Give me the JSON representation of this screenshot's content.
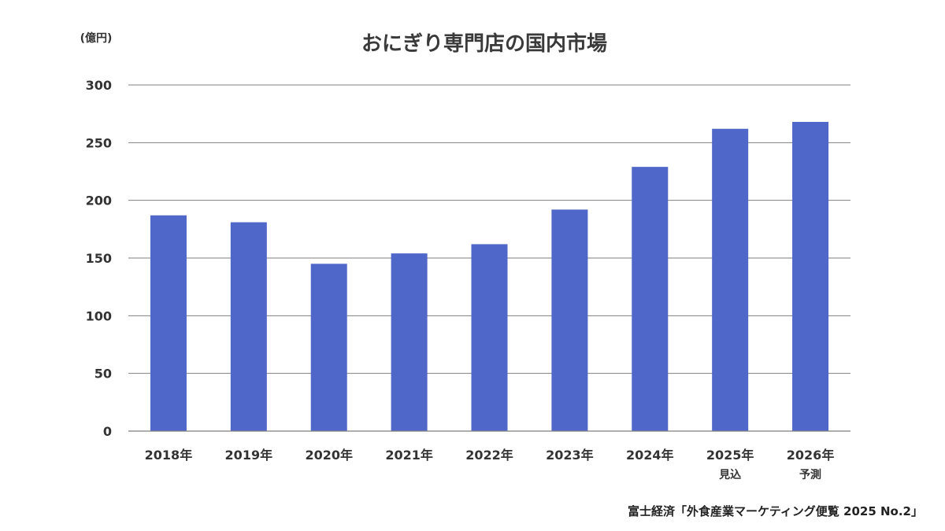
{
  "chart_data": {
    "type": "bar",
    "title": "おにぎり専門店の国内市場",
    "unit_label": "(億円)",
    "categories": [
      "2018年",
      "2019年",
      "2020年",
      "2021年",
      "2022年",
      "2023年",
      "2024年",
      "2025年",
      "2026年"
    ],
    "category_sublabels": [
      "",
      "",
      "",
      "",
      "",
      "",
      "",
      "見込",
      "予測"
    ],
    "values": [
      187,
      181,
      145,
      154,
      162,
      192,
      229,
      262,
      268
    ],
    "yticks": [
      "0",
      "50",
      "100",
      "150",
      "200",
      "250",
      "300"
    ],
    "ylim": [
      0,
      300
    ],
    "grid": true,
    "legend": "none",
    "bar_color": "#4F67C8",
    "source": "富士経済「外食産業マーケティング便覧 2025 No.2」"
  }
}
